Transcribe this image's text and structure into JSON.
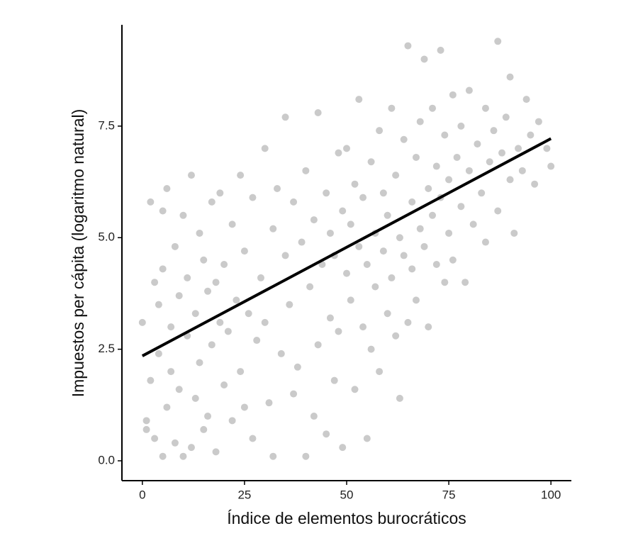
{
  "chart_data": {
    "type": "scatter",
    "x_label": "Índice de elementos burocráticos",
    "y_label": "Impuestos per cápita (logaritmo natural)",
    "color": "#b3b3b3",
    "fit_color": "#000000",
    "xlim": [
      -5,
      105
    ],
    "ylim": [
      -0.445,
      9.77
    ],
    "xticks": [
      0,
      25,
      50,
      75,
      100
    ],
    "yticks": [
      {
        "value": 0,
        "label": "0.0"
      },
      {
        "value": 2.5,
        "label": "2.5"
      },
      {
        "value": 5,
        "label": "5.0"
      },
      {
        "value": 7.5,
        "label": "7.5"
      }
    ],
    "x": [
      0,
      1,
      1,
      2,
      2,
      3,
      3,
      4,
      4,
      5,
      5,
      5,
      6,
      6,
      7,
      7,
      8,
      8,
      9,
      9,
      10,
      10,
      11,
      11,
      12,
      12,
      13,
      13,
      14,
      14,
      15,
      15,
      16,
      16,
      17,
      17,
      18,
      18,
      19,
      19,
      20,
      20,
      21,
      22,
      22,
      23,
      24,
      24,
      25,
      25,
      26,
      27,
      27,
      28,
      29,
      30,
      30,
      31,
      32,
      32,
      33,
      34,
      35,
      35,
      36,
      37,
      37,
      38,
      39,
      40,
      40,
      41,
      42,
      42,
      43,
      43,
      44,
      45,
      45,
      46,
      46,
      47,
      47,
      48,
      48,
      49,
      49,
      50,
      50,
      51,
      51,
      52,
      52,
      53,
      53,
      54,
      54,
      55,
      55,
      56,
      56,
      57,
      57,
      58,
      58,
      59,
      59,
      60,
      60,
      61,
      61,
      62,
      62,
      63,
      63,
      64,
      64,
      65,
      65,
      66,
      66,
      67,
      67,
      68,
      68,
      69,
      69,
      70,
      70,
      71,
      71,
      72,
      72,
      73,
      73,
      74,
      74,
      75,
      75,
      76,
      76,
      77,
      78,
      78,
      79,
      80,
      80,
      81,
      82,
      83,
      84,
      84,
      85,
      86,
      87,
      87,
      88,
      89,
      90,
      90,
      91,
      92,
      93,
      94,
      95,
      96,
      97,
      99,
      100
    ],
    "y": [
      3.1,
      0.9,
      0.7,
      1.8,
      5.8,
      4.0,
      0.5,
      2.4,
      3.5,
      0.1,
      5.6,
      4.3,
      6.1,
      1.2,
      3.0,
      2.0,
      0.4,
      4.8,
      3.7,
      1.6,
      5.5,
      0.1,
      2.8,
      4.1,
      6.4,
      0.3,
      1.4,
      3.3,
      5.1,
      2.2,
      0.7,
      4.5,
      3.8,
      1.0,
      5.8,
      2.6,
      0.2,
      4.0,
      3.1,
      6.0,
      1.7,
      4.4,
      2.9,
      5.3,
      0.9,
      3.6,
      6.4,
      2.0,
      4.7,
      1.2,
      3.3,
      5.9,
      0.5,
      2.7,
      4.1,
      7.0,
      3.1,
      1.3,
      5.2,
      0.1,
      6.1,
      2.4,
      4.6,
      7.7,
      3.5,
      1.5,
      5.8,
      2.1,
      4.9,
      6.5,
      0.1,
      3.9,
      1.0,
      5.4,
      2.6,
      7.8,
      4.4,
      6.0,
      0.6,
      3.2,
      5.1,
      1.8,
      4.6,
      6.9,
      2.9,
      5.6,
      0.3,
      4.2,
      7.0,
      3.6,
      5.3,
      1.6,
      6.2,
      4.8,
      8.1,
      3.0,
      5.9,
      0.5,
      4.4,
      6.7,
      2.5,
      5.1,
      3.9,
      7.4,
      2.0,
      4.7,
      6.0,
      3.3,
      5.5,
      7.9,
      4.1,
      2.8,
      6.4,
      5.0,
      1.4,
      4.6,
      7.2,
      9.3,
      3.1,
      5.8,
      4.3,
      6.8,
      3.6,
      5.2,
      7.6,
      4.8,
      9.0,
      6.1,
      3.0,
      5.5,
      7.9,
      4.4,
      6.6,
      9.2,
      5.9,
      4.0,
      7.3,
      6.3,
      5.1,
      8.2,
      4.5,
      6.8,
      5.7,
      7.5,
      4.0,
      6.5,
      8.3,
      5.3,
      7.1,
      6.0,
      7.9,
      4.9,
      6.7,
      7.4,
      9.4,
      5.6,
      6.9,
      7.7,
      6.3,
      8.6,
      5.1,
      7.0,
      6.5,
      8.1,
      7.3,
      6.2,
      7.6,
      7.0,
      6.6
    ],
    "fit": {
      "x": [
        0,
        100
      ],
      "y": [
        2.35,
        7.22
      ]
    }
  }
}
